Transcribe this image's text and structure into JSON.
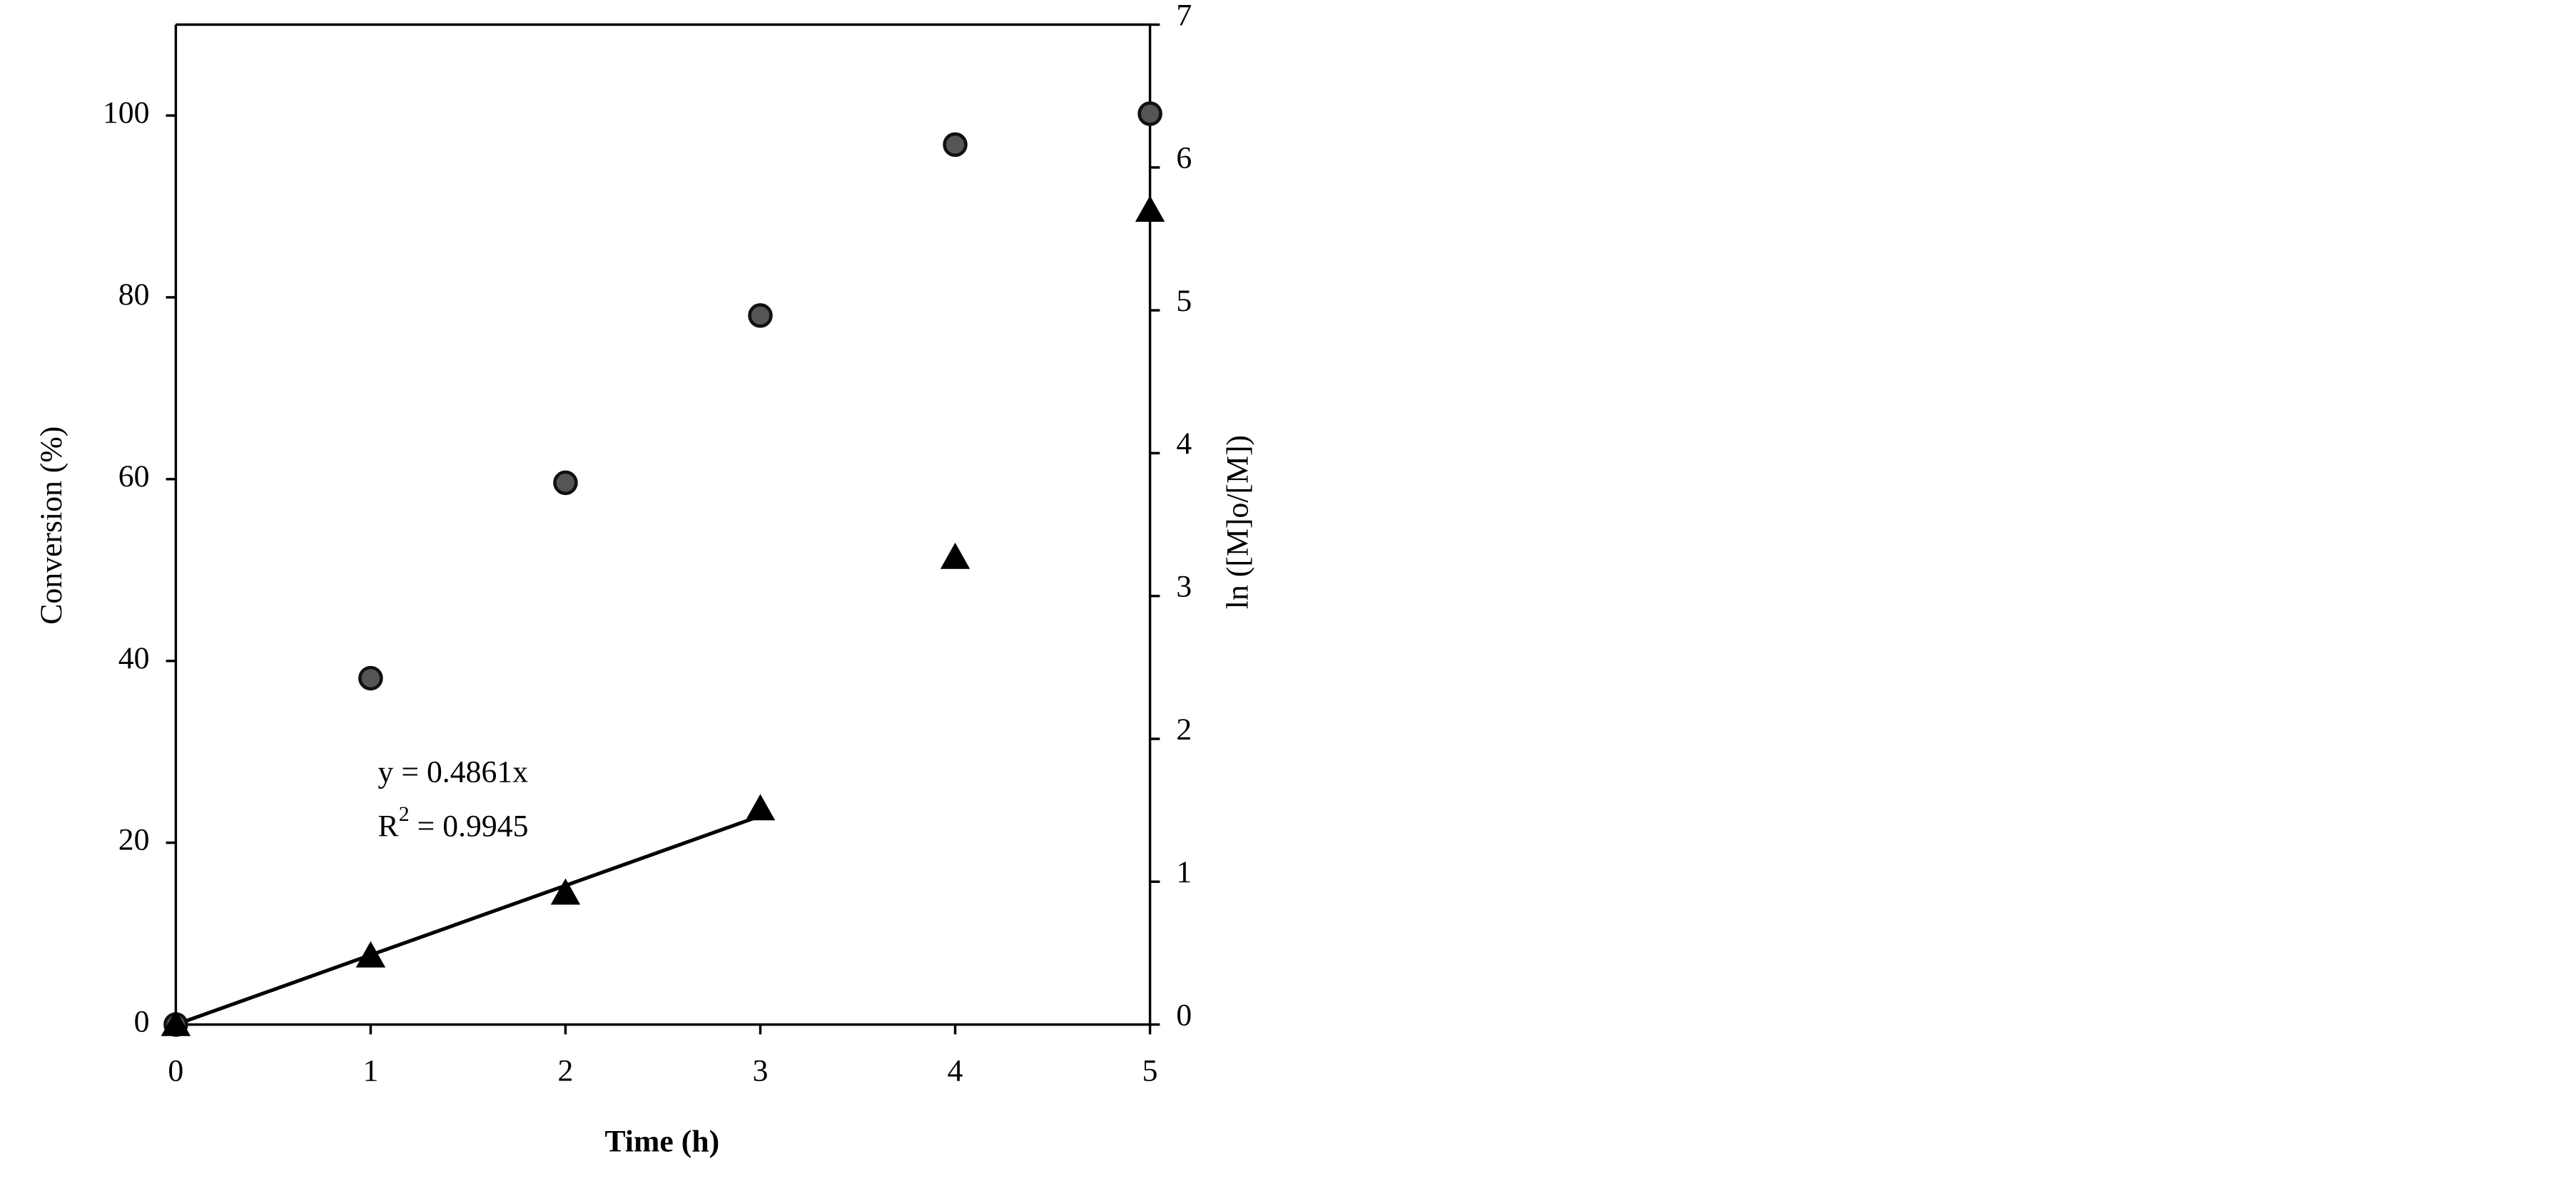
{
  "chart_data": {
    "type": "scatter",
    "xlabel": "Time (h)",
    "ylabel": "Conversion (%)",
    "y2label": "ln ([M]o/[M])",
    "x": [
      0,
      1,
      2,
      3,
      4,
      5
    ],
    "xlim": [
      0,
      5
    ],
    "xticks": [
      0,
      1,
      2,
      3,
      4,
      5
    ],
    "ylim": [
      0,
      110
    ],
    "yticks": [
      0,
      20,
      40,
      60,
      80,
      100
    ],
    "y2lim": [
      0,
      7
    ],
    "y2ticks": [
      0,
      1,
      2,
      3,
      4,
      5,
      6,
      7
    ],
    "grid": false,
    "series": [
      {
        "marker": "circle",
        "color": "#555555",
        "values": [
          0,
          38.1,
          59.6,
          78,
          96.8,
          100.2
        ]
      },
      {
        "marker": "triangle",
        "color": "#000000",
        "axis": "y2",
        "values": [
          0,
          0.48,
          0.92,
          1.51,
          3.27,
          5.7
        ]
      }
    ],
    "trendline": {
      "x": [
        0,
        3
      ],
      "values": [
        0,
        1.46
      ],
      "axis": "y2",
      "color": "#000000"
    },
    "annotations": [
      {
        "text": "y = 0.4861x"
      },
      {
        "text": "R",
        "sup": "2",
        "rest": " = 0.9945"
      }
    ]
  }
}
